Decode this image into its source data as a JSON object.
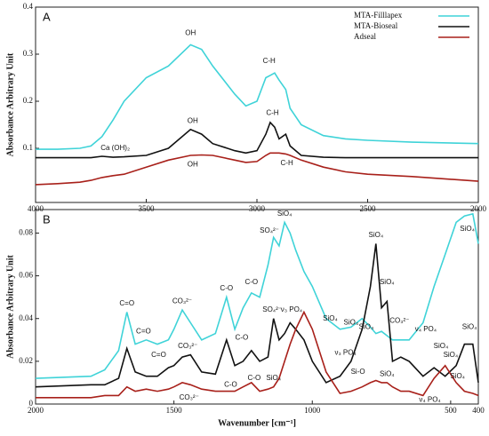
{
  "chart_data": [
    {
      "type": "line",
      "title": "A",
      "ylabel": "Absorbance Arbitrary Unit",
      "xlim": [
        4000,
        2000
      ],
      "xticks": [
        4000,
        3500,
        3000,
        2500,
        2000
      ],
      "ylim": [
        -0.015,
        0.4
      ],
      "yticks": [
        0.1,
        0.2,
        0.3,
        0.4
      ],
      "legend": "upper right",
      "x": [
        4000,
        3900,
        3800,
        3750,
        3700,
        3650,
        3600,
        3500,
        3400,
        3300,
        3250,
        3200,
        3100,
        3050,
        3000,
        2960,
        2940,
        2920,
        2900,
        2870,
        2850,
        2800,
        2700,
        2600,
        2500,
        2300,
        2000
      ],
      "series": [
        {
          "name": "MTA-Filllapex",
          "color": "#3fd3d8",
          "values": [
            0.098,
            0.098,
            0.1,
            0.105,
            0.125,
            0.16,
            0.2,
            0.25,
            0.275,
            0.32,
            0.31,
            0.275,
            0.215,
            0.19,
            0.2,
            0.25,
            0.255,
            0.26,
            0.245,
            0.225,
            0.185,
            0.15,
            0.127,
            0.12,
            0.117,
            0.113,
            0.11
          ]
        },
        {
          "name": "MTA-Bioseal",
          "color": "#111111",
          "values": [
            0.08,
            0.08,
            0.08,
            0.08,
            0.083,
            0.081,
            0.082,
            0.085,
            0.1,
            0.14,
            0.13,
            0.11,
            0.095,
            0.09,
            0.095,
            0.13,
            0.155,
            0.145,
            0.12,
            0.13,
            0.105,
            0.085,
            0.081,
            0.08,
            0.08,
            0.08,
            0.08
          ]
        },
        {
          "name": "Adseal",
          "color": "#a8201a",
          "values": [
            0.023,
            0.025,
            0.028,
            0.032,
            0.038,
            0.042,
            0.045,
            0.06,
            0.075,
            0.085,
            0.086,
            0.085,
            0.075,
            0.07,
            0.072,
            0.085,
            0.09,
            0.09,
            0.09,
            0.088,
            0.085,
            0.075,
            0.06,
            0.05,
            0.045,
            0.04,
            0.03
          ]
        }
      ],
      "annotations": [
        {
          "text": "OH",
          "x": 3300,
          "y": 0.345
        },
        {
          "text": "C-H",
          "x": 2945,
          "y": 0.285
        },
        {
          "text": "OH",
          "x": 3290,
          "y": 0.158
        },
        {
          "text": "C-H",
          "x": 2930,
          "y": 0.175
        },
        {
          "text": "Ca (OH)₂",
          "x": 3640,
          "y": 0.1
        },
        {
          "text": "OH",
          "x": 3290,
          "y": 0.065
        },
        {
          "text": "C-H",
          "x": 2865,
          "y": 0.068
        }
      ]
    },
    {
      "type": "line",
      "title": "B",
      "ylabel": "Absorbance Arbitrary Unit",
      "xlabel": "Wavenumber [cm⁻¹]",
      "xlim": [
        2000,
        400
      ],
      "xticks": [
        2000,
        1500,
        1000,
        500,
        400
      ],
      "ylim": [
        0,
        0.091
      ],
      "yticks": [
        0,
        0.02,
        0.04,
        0.06,
        0.08
      ],
      "x": [
        2000,
        1800,
        1750,
        1700,
        1670,
        1640,
        1600,
        1560,
        1520,
        1500,
        1470,
        1440,
        1400,
        1350,
        1310,
        1280,
        1250,
        1220,
        1190,
        1160,
        1140,
        1120,
        1100,
        1080,
        1060,
        1030,
        1000,
        950,
        900,
        860,
        820,
        790,
        770,
        750,
        730,
        710,
        680,
        650,
        600,
        560,
        520,
        480,
        450,
        420,
        400
      ],
      "series": [
        {
          "color": "#3fd3d8",
          "values": [
            0.012,
            0.013,
            0.016,
            0.025,
            0.043,
            0.028,
            0.03,
            0.028,
            0.03,
            0.035,
            0.044,
            0.038,
            0.03,
            0.033,
            0.05,
            0.035,
            0.045,
            0.052,
            0.05,
            0.065,
            0.078,
            0.074,
            0.085,
            0.08,
            0.072,
            0.062,
            0.055,
            0.04,
            0.035,
            0.036,
            0.04,
            0.036,
            0.033,
            0.034,
            0.032,
            0.03,
            0.03,
            0.03,
            0.038,
            0.055,
            0.07,
            0.085,
            0.088,
            0.089,
            0.075
          ]
        },
        {
          "color": "#111111",
          "values": [
            0.008,
            0.009,
            0.009,
            0.012,
            0.026,
            0.015,
            0.013,
            0.013,
            0.017,
            0.018,
            0.022,
            0.023,
            0.015,
            0.014,
            0.03,
            0.018,
            0.02,
            0.025,
            0.02,
            0.022,
            0.04,
            0.03,
            0.033,
            0.038,
            0.035,
            0.03,
            0.02,
            0.01,
            0.013,
            0.02,
            0.035,
            0.055,
            0.075,
            0.045,
            0.048,
            0.02,
            0.022,
            0.02,
            0.013,
            0.017,
            0.013,
            0.018,
            0.028,
            0.028,
            0.01
          ]
        },
        {
          "color": "#a8201a",
          "values": [
            0.003,
            0.003,
            0.004,
            0.004,
            0.008,
            0.006,
            0.007,
            0.006,
            0.007,
            0.008,
            0.01,
            0.009,
            0.007,
            0.006,
            0.006,
            0.006,
            0.008,
            0.01,
            0.006,
            0.007,
            0.008,
            0.012,
            0.02,
            0.028,
            0.035,
            0.043,
            0.035,
            0.015,
            0.005,
            0.006,
            0.008,
            0.01,
            0.011,
            0.01,
            0.01,
            0.008,
            0.006,
            0.006,
            0.004,
            0.012,
            0.018,
            0.01,
            0.006,
            0.005,
            0.004
          ]
        }
      ],
      "annotations": [
        {
          "text": "C=O",
          "x": 1670,
          "y": 0.047
        },
        {
          "text": "C=O",
          "x": 1610,
          "y": 0.034
        },
        {
          "text": "C=O",
          "x": 1555,
          "y": 0.023
        },
        {
          "text": "CO₃²⁻",
          "x": 1470,
          "y": 0.048
        },
        {
          "text": "CO₃²⁻",
          "x": 1450,
          "y": 0.027
        },
        {
          "text": "CO₃²⁻",
          "x": 1445,
          "y": 0.003
        },
        {
          "text": "C-O",
          "x": 1310,
          "y": 0.054
        },
        {
          "text": "C-O",
          "x": 1255,
          "y": 0.031
        },
        {
          "text": "C-O",
          "x": 1295,
          "y": 0.009
        },
        {
          "text": "C-O",
          "x": 1220,
          "y": 0.057
        },
        {
          "text": "C-O",
          "x": 1210,
          "y": 0.012
        },
        {
          "text": "SO₄²⁻",
          "x": 1155,
          "y": 0.081
        },
        {
          "text": "SiO₄",
          "x": 1100,
          "y": 0.089
        },
        {
          "text": "SO₄²⁻",
          "x": 1145,
          "y": 0.044
        },
        {
          "text": "ν₃ PO₄",
          "x": 1075,
          "y": 0.044
        },
        {
          "text": "SiO₄",
          "x": 1140,
          "y": 0.012
        },
        {
          "text": "SiO₄",
          "x": 935,
          "y": 0.04
        },
        {
          "text": "SiO₄",
          "x": 860,
          "y": 0.038
        },
        {
          "text": "SiO₄",
          "x": 805,
          "y": 0.036
        },
        {
          "text": "SiO₄",
          "x": 770,
          "y": 0.079
        },
        {
          "text": "SiO₄",
          "x": 730,
          "y": 0.057
        },
        {
          "text": "ν₃ PO₄",
          "x": 880,
          "y": 0.024
        },
        {
          "text": "Si-O",
          "x": 835,
          "y": 0.015
        },
        {
          "text": "SiO₄",
          "x": 730,
          "y": 0.014
        },
        {
          "text": "CO₃²⁻",
          "x": 685,
          "y": 0.039
        },
        {
          "text": "ν₄ PO₄",
          "x": 590,
          "y": 0.035
        },
        {
          "text": "SiO₄",
          "x": 535,
          "y": 0.027
        },
        {
          "text": "SiO₄",
          "x": 500,
          "y": 0.023
        },
        {
          "text": "SiO₄",
          "x": 475,
          "y": 0.013
        },
        {
          "text": "ν₄ PO₄",
          "x": 575,
          "y": 0.002
        },
        {
          "text": "SiO₄",
          "x": 440,
          "y": 0.082
        },
        {
          "text": "SiO₄",
          "x": 432,
          "y": 0.036
        }
      ]
    }
  ]
}
